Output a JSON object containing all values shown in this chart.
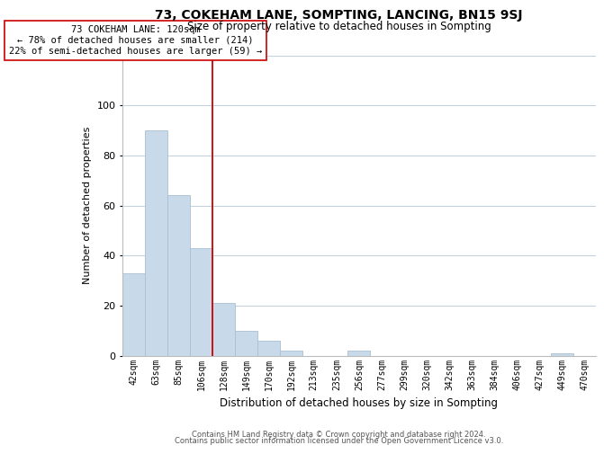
{
  "title": "73, COKEHAM LANE, SOMPTING, LANCING, BN15 9SJ",
  "subtitle": "Size of property relative to detached houses in Sompting",
  "xlabel": "Distribution of detached houses by size in Sompting",
  "ylabel": "Number of detached properties",
  "bar_color": "#c8daea",
  "bar_edge_color": "#a8c0d4",
  "reference_line_color": "#cc0000",
  "categories": [
    "42sqm",
    "63sqm",
    "85sqm",
    "106sqm",
    "128sqm",
    "149sqm",
    "170sqm",
    "192sqm",
    "213sqm",
    "235sqm",
    "256sqm",
    "277sqm",
    "299sqm",
    "320sqm",
    "342sqm",
    "363sqm",
    "384sqm",
    "406sqm",
    "427sqm",
    "449sqm",
    "470sqm"
  ],
  "values": [
    33,
    90,
    64,
    43,
    21,
    10,
    6,
    2,
    0,
    0,
    2,
    0,
    0,
    0,
    0,
    0,
    0,
    0,
    0,
    1,
    0
  ],
  "ylim": [
    0,
    120
  ],
  "yticks": [
    0,
    20,
    40,
    60,
    80,
    100,
    120
  ],
  "annotation_title": "73 COKEHAM LANE: 120sqm",
  "annotation_line1": "← 78% of detached houses are smaller (214)",
  "annotation_line2": "22% of semi-detached houses are larger (59) →",
  "footnote1": "Contains HM Land Registry data © Crown copyright and database right 2024.",
  "footnote2": "Contains public sector information licensed under the Open Government Licence v3.0.",
  "background_color": "#ffffff",
  "grid_color": "#c0d0e0"
}
